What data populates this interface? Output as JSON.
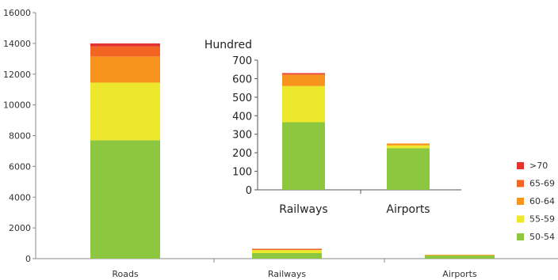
{
  "chart_data": [
    {
      "type": "bar",
      "stacked": true,
      "categories": [
        "Roads",
        "Railways",
        "Airports"
      ],
      "series": [
        {
          "name": "50-54",
          "color": "#8dc63f",
          "values": [
            7700,
            360,
            210
          ]
        },
        {
          "name": "55-59",
          "color": "#ede82c",
          "values": [
            3750,
            200,
            30
          ]
        },
        {
          "name": "60-64",
          "color": "#f7941d",
          "values": [
            1700,
            60,
            10
          ]
        },
        {
          "name": "65-69",
          "color": "#f26522",
          "values": [
            650,
            10,
            0
          ]
        },
        {
          "name": ">70",
          "color": "#e4332f",
          "values": [
            200,
            5,
            0
          ]
        }
      ],
      "ylim": [
        0,
        16000
      ],
      "yticks": [
        "0",
        "2000",
        "4000",
        "6000",
        "8000",
        "10000",
        "12000",
        "14000",
        "16000"
      ],
      "legend": "right"
    },
    {
      "type": "bar",
      "stacked": true,
      "categories": [
        "Railways",
        "Airports"
      ],
      "series": [
        {
          "name": "50-54",
          "color": "#8dc63f",
          "values": [
            365,
            225
          ]
        },
        {
          "name": "55-59",
          "color": "#ede82c",
          "values": [
            195,
            15
          ]
        },
        {
          "name": "60-64",
          "color": "#f7941d",
          "values": [
            60,
            10
          ]
        },
        {
          "name": "65-69",
          "color": "#f26522",
          "values": [
            5,
            0
          ]
        },
        {
          "name": ">70",
          "color": "#e4332f",
          "values": [
            5,
            0
          ]
        }
      ],
      "ylabel": "Hundred",
      "ylim": [
        0,
        700
      ],
      "yticks": [
        "0",
        "100",
        "200",
        "300",
        "400",
        "500",
        "600",
        "700"
      ]
    }
  ]
}
